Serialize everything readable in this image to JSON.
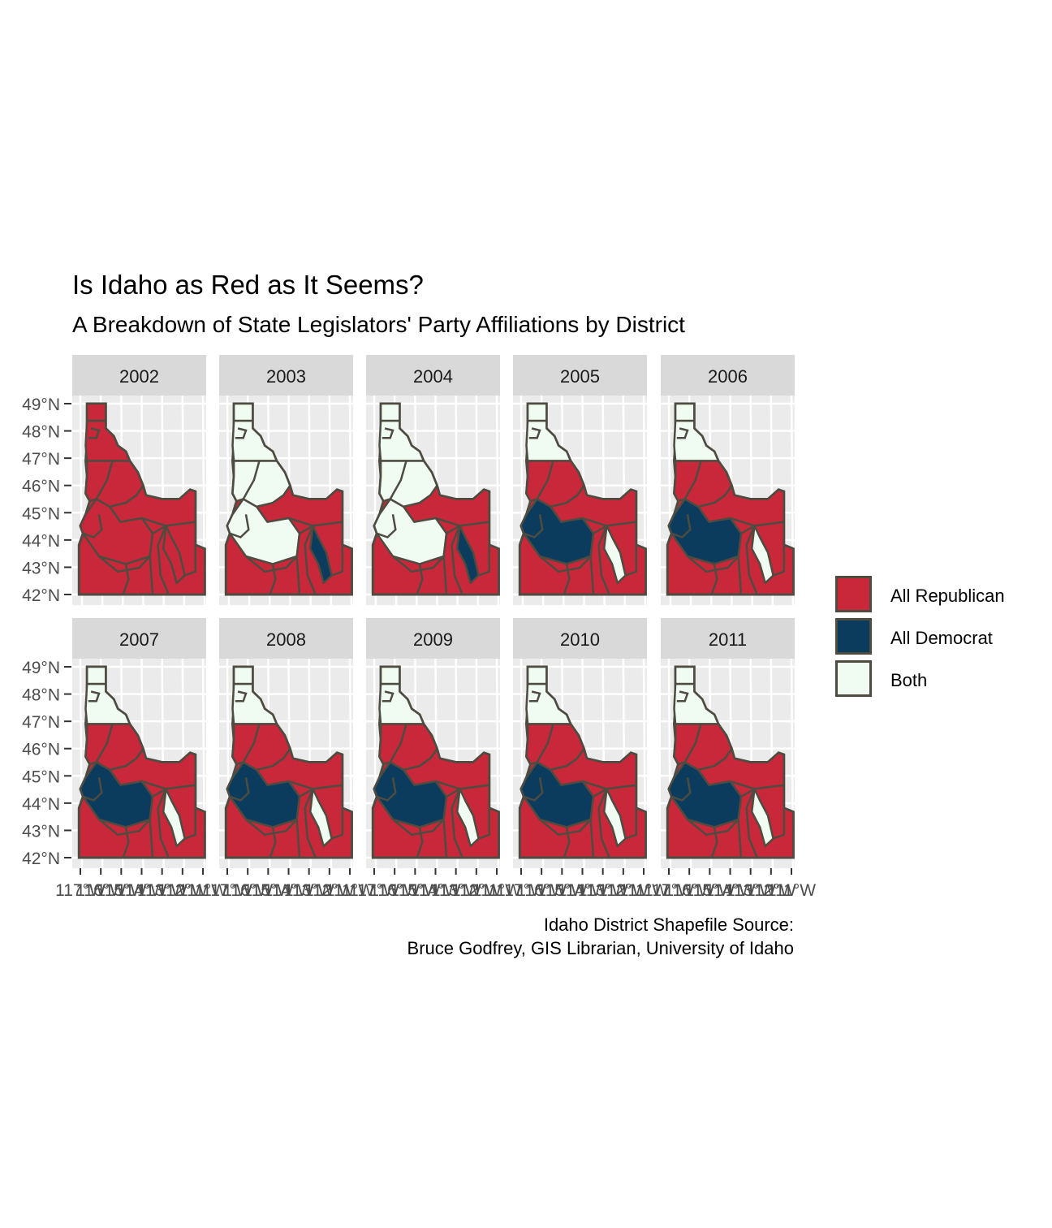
{
  "title": "Is Idaho as Red as It Seems?",
  "subtitle": "A Breakdown of State Legislators' Party Affiliations by District",
  "caption_lines": [
    "Idaho District Shapefile Source:",
    "Bruce Godfrey, GIS Librarian, University of Idaho"
  ],
  "lat_ticks": [
    "49°N",
    "48°N",
    "47°N",
    "46°N",
    "45°N",
    "44°N",
    "43°N",
    "42°N"
  ],
  "lon_ticks": [
    "117°W",
    "116°W",
    "115°W",
    "114°W",
    "113°W",
    "112°W",
    "111°W"
  ],
  "legend": [
    {
      "label": "All Republican",
      "color": "#c8283a"
    },
    {
      "label": "All Democrat",
      "color": "#0b3c5d"
    },
    {
      "label": "Both",
      "color": "#f0fcf2"
    }
  ],
  "colors": {
    "republican": "#c8283a",
    "democrat": "#0b3c5d",
    "both": "#f0fcf2",
    "border": "#4e4b41",
    "panel": "#ebebeb",
    "strip": "#d9d9d9"
  },
  "panels": [
    {
      "year": "2002",
      "panhandle": "republican",
      "upper_north": "republican",
      "central_north": "republican",
      "central": "republican",
      "boise": "republican",
      "pocatello": "republican",
      "east": "republican"
    },
    {
      "year": "2003",
      "panhandle": "both",
      "upper_north": "both",
      "central_north": "both",
      "central": "republican",
      "boise": "both",
      "pocatello": "democrat",
      "east": "republican"
    },
    {
      "year": "2004",
      "panhandle": "both",
      "upper_north": "both",
      "central_north": "both",
      "central": "republican",
      "boise": "both",
      "pocatello": "democrat",
      "east": "republican"
    },
    {
      "year": "2005",
      "panhandle": "both",
      "upper_north": "both",
      "central_north": "republican",
      "central": "republican",
      "boise": "democrat",
      "pocatello": "both",
      "east": "republican"
    },
    {
      "year": "2006",
      "panhandle": "both",
      "upper_north": "both",
      "central_north": "republican",
      "central": "republican",
      "boise": "democrat",
      "pocatello": "both",
      "east": "republican"
    },
    {
      "year": "2007",
      "panhandle": "both",
      "upper_north": "both",
      "central_north": "republican",
      "central": "republican",
      "boise": "democrat",
      "pocatello": "both",
      "east": "republican"
    },
    {
      "year": "2008",
      "panhandle": "both",
      "upper_north": "both",
      "central_north": "republican",
      "central": "republican",
      "boise": "democrat",
      "pocatello": "both",
      "east": "republican"
    },
    {
      "year": "2009",
      "panhandle": "both",
      "upper_north": "both",
      "central_north": "republican",
      "central": "republican",
      "boise": "democrat",
      "pocatello": "both",
      "east": "republican"
    },
    {
      "year": "2010",
      "panhandle": "both",
      "upper_north": "both",
      "central_north": "republican",
      "central": "republican",
      "boise": "democrat",
      "pocatello": "both",
      "east": "republican"
    },
    {
      "year": "2011",
      "panhandle": "both",
      "upper_north": "both",
      "central_north": "republican",
      "central": "republican",
      "boise": "democrat",
      "pocatello": "both",
      "east": "republican"
    }
  ]
}
